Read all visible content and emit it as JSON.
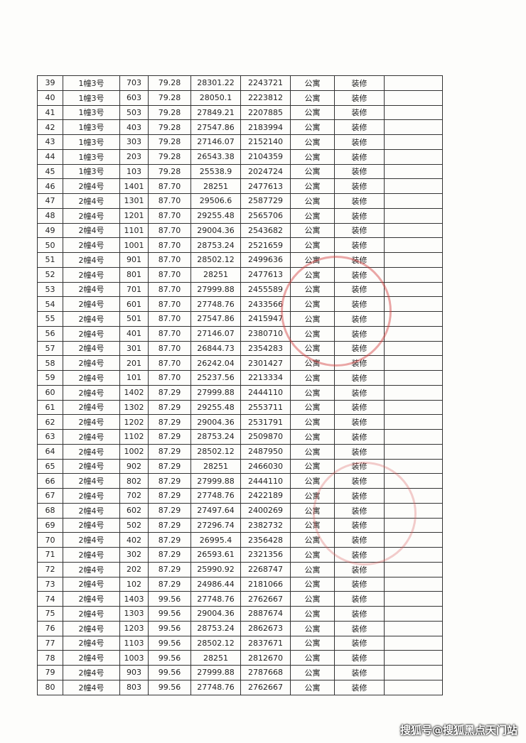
{
  "table": {
    "rows": [
      [
        "39",
        "1幢3号",
        "703",
        "79.28",
        "28301.22",
        "2243721",
        "公寓",
        "装修"
      ],
      [
        "40",
        "1幢3号",
        "603",
        "79.28",
        "28050.1",
        "2223812",
        "公寓",
        "装修"
      ],
      [
        "41",
        "1幢3号",
        "503",
        "79.28",
        "27849.21",
        "2207885",
        "公寓",
        "装修"
      ],
      [
        "42",
        "1幢3号",
        "403",
        "79.28",
        "27547.86",
        "2183994",
        "公寓",
        "装修"
      ],
      [
        "43",
        "1幢3号",
        "303",
        "79.28",
        "27146.07",
        "2152140",
        "公寓",
        "装修"
      ],
      [
        "44",
        "1幢3号",
        "203",
        "79.28",
        "26543.38",
        "2104359",
        "公寓",
        "装修"
      ],
      [
        "45",
        "1幢3号",
        "103",
        "79.28",
        "25538.9",
        "2024724",
        "公寓",
        "装修"
      ],
      [
        "46",
        "2幢4号",
        "1401",
        "87.70",
        "28251",
        "2477613",
        "公寓",
        "装修"
      ],
      [
        "47",
        "2幢4号",
        "1301",
        "87.70",
        "29506.6",
        "2587729",
        "公寓",
        "装修"
      ],
      [
        "48",
        "2幢4号",
        "1201",
        "87.70",
        "29255.48",
        "2565706",
        "公寓",
        "装修"
      ],
      [
        "49",
        "2幢4号",
        "1101",
        "87.70",
        "29004.36",
        "2543682",
        "公寓",
        "装修"
      ],
      [
        "50",
        "2幢4号",
        "1001",
        "87.70",
        "28753.24",
        "2521659",
        "公寓",
        "装修"
      ],
      [
        "51",
        "2幢4号",
        "901",
        "87.70",
        "28502.12",
        "2499636",
        "公寓",
        "装修"
      ],
      [
        "52",
        "2幢4号",
        "801",
        "87.70",
        "28251",
        "2477613",
        "公寓",
        "装修"
      ],
      [
        "53",
        "2幢4号",
        "701",
        "87.70",
        "27999.88",
        "2455589",
        "公寓",
        "装修"
      ],
      [
        "54",
        "2幢4号",
        "601",
        "87.70",
        "27748.76",
        "2433566",
        "公寓",
        "装修"
      ],
      [
        "55",
        "2幢4号",
        "501",
        "87.70",
        "27547.86",
        "2415947",
        "公寓",
        "装修"
      ],
      [
        "56",
        "2幢4号",
        "401",
        "87.70",
        "27146.07",
        "2380710",
        "公寓",
        "装修"
      ],
      [
        "57",
        "2幢4号",
        "301",
        "87.70",
        "26844.73",
        "2354283",
        "公寓",
        "装修"
      ],
      [
        "58",
        "2幢4号",
        "201",
        "87.70",
        "26242.04",
        "2301427",
        "公寓",
        "装修"
      ],
      [
        "59",
        "2幢4号",
        "101",
        "87.70",
        "25237.56",
        "2213334",
        "公寓",
        "装修"
      ],
      [
        "60",
        "2幢4号",
        "1402",
        "87.29",
        "27999.88",
        "2444110",
        "公寓",
        "装修"
      ],
      [
        "61",
        "2幢4号",
        "1302",
        "87.29",
        "29255.48",
        "2553711",
        "公寓",
        "装修"
      ],
      [
        "62",
        "2幢4号",
        "1202",
        "87.29",
        "29004.36",
        "2531791",
        "公寓",
        "装修"
      ],
      [
        "63",
        "2幢4号",
        "1102",
        "87.29",
        "28753.24",
        "2509870",
        "公寓",
        "装修"
      ],
      [
        "64",
        "2幢4号",
        "1002",
        "87.29",
        "28502.12",
        "2487950",
        "公寓",
        "装修"
      ],
      [
        "65",
        "2幢4号",
        "902",
        "87.29",
        "28251",
        "2466030",
        "公寓",
        "装修"
      ],
      [
        "66",
        "2幢4号",
        "802",
        "87.29",
        "27999.88",
        "2444110",
        "公寓",
        "装修"
      ],
      [
        "67",
        "2幢4号",
        "702",
        "87.29",
        "27748.76",
        "2422189",
        "公寓",
        "装修"
      ],
      [
        "68",
        "2幢4号",
        "602",
        "87.29",
        "27497.64",
        "2400269",
        "公寓",
        "装修"
      ],
      [
        "69",
        "2幢4号",
        "502",
        "87.29",
        "27296.74",
        "2382732",
        "公寓",
        "装修"
      ],
      [
        "70",
        "2幢4号",
        "402",
        "87.29",
        "26995.4",
        "2356428",
        "公寓",
        "装修"
      ],
      [
        "71",
        "2幢4号",
        "302",
        "87.29",
        "26593.61",
        "2321356",
        "公寓",
        "装修"
      ],
      [
        "72",
        "2幢4号",
        "202",
        "87.29",
        "25990.92",
        "2268747",
        "公寓",
        "装修"
      ],
      [
        "73",
        "2幢4号",
        "102",
        "87.29",
        "24986.44",
        "2181066",
        "公寓",
        "装修"
      ],
      [
        "74",
        "2幢4号",
        "1403",
        "99.56",
        "27748.76",
        "2762667",
        "公寓",
        "装修"
      ],
      [
        "75",
        "2幢4号",
        "1303",
        "99.56",
        "29004.36",
        "2887674",
        "公寓",
        "装修"
      ],
      [
        "76",
        "2幢4号",
        "1203",
        "99.56",
        "28753.24",
        "2862673",
        "公寓",
        "装修"
      ],
      [
        "77",
        "2幢4号",
        "1103",
        "99.56",
        "28502.12",
        "2837671",
        "公寓",
        "装修"
      ],
      [
        "78",
        "2幢4号",
        "1003",
        "99.56",
        "28251",
        "2812670",
        "公寓",
        "装修"
      ],
      [
        "79",
        "2幢4号",
        "903",
        "99.56",
        "27999.88",
        "2787668",
        "公寓",
        "装修"
      ],
      [
        "80",
        "2幢4号",
        "803",
        "99.56",
        "27748.76",
        "2762667",
        "公寓",
        "装修"
      ]
    ]
  },
  "footer": "搜狐号@搜狐黑点天门站"
}
